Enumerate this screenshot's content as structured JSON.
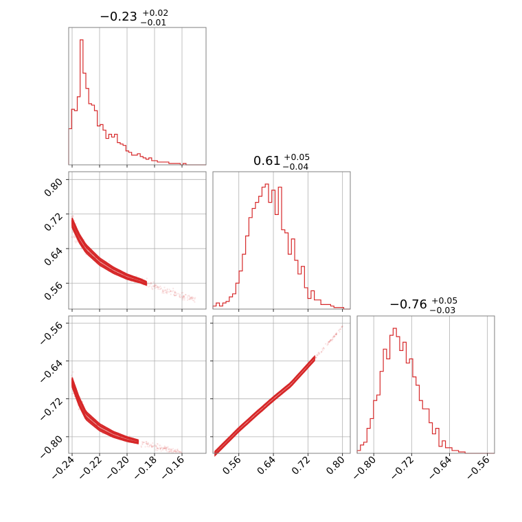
{
  "chart_data": {
    "type": "corner",
    "color": "#d62728",
    "grid": true,
    "parameters": [
      {
        "range": [
          -0.2425,
          -0.1425
        ],
        "ticks": [
          -0.24,
          -0.22,
          -0.2,
          -0.18,
          -0.16
        ],
        "tick_labels": [
          "−0.24",
          "−0.22",
          "−0.20",
          "−0.18",
          "−0.16"
        ],
        "title": {
          "value": "−0.23",
          "plus": "+0.02",
          "minus": "−0.01"
        }
      },
      {
        "range": [
          0.5,
          0.818
        ],
        "ticks": [
          0.56,
          0.64,
          0.72,
          0.8
        ],
        "tick_labels": [
          "0.56",
          "0.64",
          "0.72",
          "0.80"
        ],
        "title": {
          "value": "0.61",
          "plus": "+0.05",
          "minus": "−0.04"
        }
      },
      {
        "range": [
          -0.835,
          -0.545
        ],
        "ticks": [
          -0.8,
          -0.72,
          -0.64,
          -0.56
        ],
        "tick_labels": [
          "−0.80",
          "−0.72",
          "−0.64",
          "−0.56"
        ],
        "title": {
          "value": "−0.76",
          "plus": "+0.05",
          "minus": "−0.03"
        }
      }
    ],
    "histograms": [
      {
        "param": 0,
        "counts": [
          0.26,
          0.4,
          0.39,
          0.49,
          0.9,
          0.66,
          0.55,
          0.44,
          0.43,
          0.39,
          0.28,
          0.29,
          0.25,
          0.19,
          0.22,
          0.2,
          0.22,
          0.16,
          0.15,
          0.14,
          0.1,
          0.09,
          0.07,
          0.07,
          0.08,
          0.06,
          0.05,
          0.04,
          0.05,
          0.03,
          0.03,
          0.02,
          0.02,
          0.02,
          0.02,
          0.01,
          0.01,
          0.01,
          0.01,
          0.0,
          0.01,
          0.0,
          0.0,
          0.0,
          0.0,
          0.0,
          0.0,
          0.0
        ]
      },
      {
        "param": 1,
        "counts": [
          0.02,
          0.04,
          0.02,
          0.04,
          0.05,
          0.08,
          0.1,
          0.17,
          0.25,
          0.36,
          0.48,
          0.6,
          0.66,
          0.7,
          0.74,
          0.8,
          0.82,
          0.7,
          0.78,
          0.62,
          0.8,
          0.52,
          0.5,
          0.36,
          0.46,
          0.32,
          0.23,
          0.28,
          0.14,
          0.07,
          0.12,
          0.06,
          0.06,
          0.03,
          0.03,
          0.03,
          0.02,
          0.01,
          0.01,
          0.01,
          0.0,
          0.0
        ]
      },
      {
        "param": 2,
        "counts": [
          0.02,
          0.06,
          0.08,
          0.18,
          0.25,
          0.38,
          0.42,
          0.59,
          0.75,
          0.68,
          0.85,
          0.9,
          0.84,
          0.74,
          0.8,
          0.65,
          0.68,
          0.55,
          0.49,
          0.38,
          0.32,
          0.32,
          0.22,
          0.14,
          0.18,
          0.05,
          0.09,
          0.04,
          0.04,
          0.02,
          0.02,
          0.01,
          0.01,
          0.0,
          0.0,
          0.0,
          0.0,
          0.0,
          0.0,
          0.0,
          0.0,
          0.0
        ]
      }
    ],
    "relations": [
      {
        "x_param": 0,
        "y_param": 1,
        "curve": [
          [
            -0.24,
            0.7
          ],
          [
            -0.235,
            0.665
          ],
          [
            -0.23,
            0.64
          ],
          [
            -0.22,
            0.61
          ],
          [
            -0.21,
            0.59
          ],
          [
            -0.2,
            0.575
          ],
          [
            -0.19,
            0.565
          ],
          [
            -0.18,
            0.552
          ],
          [
            -0.17,
            0.54
          ],
          [
            -0.16,
            0.53
          ],
          [
            -0.15,
            0.522
          ]
        ]
      },
      {
        "x_param": 0,
        "y_param": 2,
        "curve": [
          [
            -0.24,
            -0.685
          ],
          [
            -0.235,
            -0.725
          ],
          [
            -0.23,
            -0.755
          ],
          [
            -0.22,
            -0.78
          ],
          [
            -0.21,
            -0.795
          ],
          [
            -0.2,
            -0.805
          ],
          [
            -0.19,
            -0.812
          ],
          [
            -0.18,
            -0.82
          ],
          [
            -0.17,
            -0.828
          ],
          [
            -0.16,
            -0.833
          ]
        ]
      },
      {
        "x_param": 1,
        "y_param": 2,
        "curve": [
          [
            0.505,
            -0.835
          ],
          [
            0.56,
            -0.785
          ],
          [
            0.6,
            -0.752
          ],
          [
            0.64,
            -0.72
          ],
          [
            0.68,
            -0.69
          ],
          [
            0.72,
            -0.65
          ],
          [
            0.76,
            -0.61
          ],
          [
            0.8,
            -0.568
          ]
        ]
      }
    ]
  }
}
